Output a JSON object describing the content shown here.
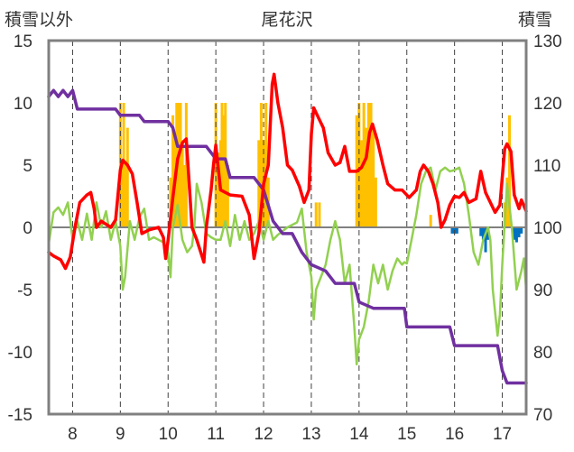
{
  "chart_data": {
    "type": "line",
    "title": "尾花沢",
    "ylabel_left": "積雪以外",
    "ylabel_right": "積雪",
    "x_ticks": [
      "8",
      "9",
      "10",
      "11",
      "12",
      "13",
      "14",
      "15",
      "16",
      "17"
    ],
    "xlim": [
      7.5,
      17.5
    ],
    "ylim_left": [
      -15,
      15
    ],
    "yticks_left": [
      15,
      10,
      5,
      0,
      -5,
      -10,
      -15
    ],
    "ylim_right": [
      70,
      130
    ],
    "yticks_right": [
      130,
      120,
      110,
      100,
      90,
      80,
      70
    ],
    "grid": "vertical dashed at each day, horizontal zero line",
    "colors": {
      "red": "#ff0000",
      "green": "#92d050",
      "purple": "#7030a0",
      "orange": "#ffc000",
      "blue": "#0070c0",
      "frame": "#808080"
    },
    "series": [
      {
        "axis": "left",
        "color": "red",
        "style": "line",
        "points": [
          [
            7.5,
            -2
          ],
          [
            7.6,
            -2.3
          ],
          [
            7.75,
            -2.6
          ],
          [
            7.85,
            -3.3
          ],
          [
            7.95,
            -2.4
          ],
          [
            8.05,
            0
          ],
          [
            8.15,
            2
          ],
          [
            8.3,
            2.6
          ],
          [
            8.38,
            2.8
          ],
          [
            8.45,
            1.5
          ],
          [
            8.5,
            0
          ],
          [
            8.6,
            0.5
          ],
          [
            8.8,
            0
          ],
          [
            8.9,
            0.6
          ],
          [
            9.0,
            4.6
          ],
          [
            9.05,
            5.4
          ],
          [
            9.15,
            5
          ],
          [
            9.25,
            4.3
          ],
          [
            9.35,
            2
          ],
          [
            9.45,
            -0.5
          ],
          [
            9.6,
            -0.2
          ],
          [
            9.8,
            0
          ],
          [
            9.9,
            -0.8
          ],
          [
            9.95,
            -2.5
          ],
          [
            10.0,
            -1
          ],
          [
            10.1,
            2.4
          ],
          [
            10.2,
            5.5
          ],
          [
            10.3,
            6.8
          ],
          [
            10.38,
            7.1
          ],
          [
            10.45,
            3
          ],
          [
            10.5,
            0
          ],
          [
            10.6,
            -1
          ],
          [
            10.7,
            -2.2
          ],
          [
            10.75,
            -2.8
          ],
          [
            10.8,
            0
          ],
          [
            10.9,
            3
          ],
          [
            10.95,
            5
          ],
          [
            11.0,
            6.6
          ],
          [
            11.1,
            3
          ],
          [
            11.3,
            2.6
          ],
          [
            11.55,
            2.5
          ],
          [
            11.7,
            1
          ],
          [
            11.8,
            -2.5
          ],
          [
            11.9,
            -0.5
          ],
          [
            12.0,
            3.5
          ],
          [
            12.1,
            5
          ],
          [
            12.18,
            11.5
          ],
          [
            12.22,
            12.3
          ],
          [
            12.3,
            10
          ],
          [
            12.4,
            8
          ],
          [
            12.5,
            5
          ],
          [
            12.6,
            4.6
          ],
          [
            12.75,
            3.3
          ],
          [
            12.85,
            2
          ],
          [
            12.95,
            3
          ],
          [
            13.0,
            7.5
          ],
          [
            13.05,
            9.6
          ],
          [
            13.15,
            8.8
          ],
          [
            13.25,
            8
          ],
          [
            13.35,
            6
          ],
          [
            13.5,
            5
          ],
          [
            13.6,
            5.2
          ],
          [
            13.7,
            6.5
          ],
          [
            13.8,
            4.5
          ],
          [
            13.95,
            4.5
          ],
          [
            14.05,
            4.8
          ],
          [
            14.15,
            5.6
          ],
          [
            14.22,
            7.6
          ],
          [
            14.28,
            8.3
          ],
          [
            14.38,
            7
          ],
          [
            14.5,
            5
          ],
          [
            14.6,
            3.5
          ],
          [
            14.75,
            3
          ],
          [
            14.9,
            3
          ],
          [
            15.05,
            2.4
          ],
          [
            15.2,
            3
          ],
          [
            15.28,
            4.5
          ],
          [
            15.35,
            5
          ],
          [
            15.45,
            4.5
          ],
          [
            15.55,
            3.5
          ],
          [
            15.65,
            2
          ],
          [
            15.72,
            0
          ],
          [
            15.8,
            0.6
          ],
          [
            15.9,
            1.8
          ],
          [
            16.0,
            2.5
          ],
          [
            16.1,
            2.4
          ],
          [
            16.2,
            2.8
          ],
          [
            16.3,
            2
          ],
          [
            16.45,
            2.3
          ],
          [
            16.55,
            4.5
          ],
          [
            16.65,
            2.8
          ],
          [
            16.75,
            2
          ],
          [
            16.85,
            1.2
          ],
          [
            16.95,
            1.8
          ],
          [
            17.0,
            4
          ],
          [
            17.05,
            6.3
          ],
          [
            17.1,
            6.7
          ],
          [
            17.18,
            6.1
          ],
          [
            17.25,
            2.6
          ],
          [
            17.35,
            1.5
          ],
          [
            17.4,
            2.2
          ],
          [
            17.5,
            1.3
          ]
        ]
      },
      {
        "axis": "left",
        "color": "green",
        "style": "line",
        "points": [
          [
            7.5,
            -1.3
          ],
          [
            7.6,
            1.2
          ],
          [
            7.7,
            1.6
          ],
          [
            7.8,
            1
          ],
          [
            7.9,
            2
          ],
          [
            8.0,
            -1
          ],
          [
            8.1,
            0.5
          ],
          [
            8.2,
            -1
          ],
          [
            8.3,
            1.1
          ],
          [
            8.4,
            -1
          ],
          [
            8.5,
            2
          ],
          [
            8.6,
            0
          ],
          [
            8.7,
            1.3
          ],
          [
            8.8,
            -1
          ],
          [
            8.9,
            0.5
          ],
          [
            9.0,
            -1.5
          ],
          [
            9.05,
            -5
          ],
          [
            9.1,
            -4
          ],
          [
            9.2,
            0.5
          ],
          [
            9.3,
            -1
          ],
          [
            9.4,
            0.8
          ],
          [
            9.5,
            1.5
          ],
          [
            9.6,
            -1
          ],
          [
            9.7,
            -0.8
          ],
          [
            9.8,
            -1
          ],
          [
            9.9,
            -1.2
          ],
          [
            10.0,
            -2
          ],
          [
            10.05,
            -4
          ],
          [
            10.1,
            0
          ],
          [
            10.2,
            1.8
          ],
          [
            10.3,
            -1
          ],
          [
            10.4,
            -2
          ],
          [
            10.5,
            -1.5
          ],
          [
            10.55,
            0
          ],
          [
            10.6,
            3.5
          ],
          [
            10.7,
            2
          ],
          [
            10.8,
            -0.5
          ],
          [
            10.9,
            -0.8
          ],
          [
            11.0,
            -1
          ],
          [
            11.1,
            -1
          ],
          [
            11.2,
            0.5
          ],
          [
            11.3,
            -1.5
          ],
          [
            11.4,
            1
          ],
          [
            11.5,
            -1
          ],
          [
            11.6,
            0.5
          ],
          [
            11.7,
            -1
          ],
          [
            11.8,
            -0.5
          ],
          [
            11.9,
            0.5
          ],
          [
            12.0,
            -1
          ],
          [
            12.1,
            0.5
          ],
          [
            12.2,
            -1
          ],
          [
            12.3,
            -0.6
          ],
          [
            12.5,
            0
          ],
          [
            12.7,
            0.4
          ],
          [
            12.8,
            1.5
          ],
          [
            12.9,
            -2
          ],
          [
            13.0,
            -4
          ],
          [
            13.05,
            -7.4
          ],
          [
            13.1,
            -5
          ],
          [
            13.2,
            -4
          ],
          [
            13.3,
            -3
          ],
          [
            13.4,
            -1
          ],
          [
            13.5,
            0.5
          ],
          [
            13.6,
            -1
          ],
          [
            13.7,
            -4.5
          ],
          [
            13.8,
            -3
          ],
          [
            13.9,
            -8
          ],
          [
            13.95,
            -11
          ],
          [
            14.0,
            -9
          ],
          [
            14.1,
            -8
          ],
          [
            14.2,
            -6
          ],
          [
            14.3,
            -3
          ],
          [
            14.4,
            -4.5
          ],
          [
            14.5,
            -3
          ],
          [
            14.6,
            -5
          ],
          [
            14.7,
            -3.5
          ],
          [
            14.8,
            -2.5
          ],
          [
            14.9,
            -3
          ],
          [
            14.95,
            -2.8
          ],
          [
            15.0,
            -2.9
          ],
          [
            15.1,
            -1
          ],
          [
            15.2,
            1
          ],
          [
            15.3,
            3.5
          ],
          [
            15.4,
            4.5
          ],
          [
            15.5,
            4.8
          ],
          [
            15.6,
            3
          ],
          [
            15.7,
            4.5
          ],
          [
            15.8,
            4.8
          ],
          [
            15.9,
            4.5
          ],
          [
            16.0,
            4.6
          ],
          [
            16.1,
            4.8
          ],
          [
            16.2,
            3.5
          ],
          [
            16.3,
            1
          ],
          [
            16.4,
            -2
          ],
          [
            16.5,
            -3
          ],
          [
            16.6,
            -1
          ],
          [
            16.7,
            0
          ],
          [
            16.75,
            -1
          ],
          [
            16.8,
            -5
          ],
          [
            16.9,
            -8.7
          ],
          [
            16.95,
            -7
          ],
          [
            17.0,
            -3
          ],
          [
            17.1,
            3.5
          ],
          [
            17.2,
            0
          ],
          [
            17.3,
            -5
          ],
          [
            17.4,
            -3.5
          ],
          [
            17.45,
            -2.5
          ],
          [
            17.5,
            -5
          ]
        ]
      },
      {
        "axis": "right",
        "color": "purple",
        "style": "line",
        "points": [
          [
            7.5,
            121
          ],
          [
            7.6,
            122
          ],
          [
            7.7,
            121
          ],
          [
            7.8,
            122
          ],
          [
            7.9,
            121
          ],
          [
            8.0,
            122
          ],
          [
            8.1,
            119
          ],
          [
            8.5,
            119
          ],
          [
            8.9,
            119
          ],
          [
            9.0,
            118
          ],
          [
            9.2,
            118
          ],
          [
            9.4,
            118
          ],
          [
            9.5,
            117
          ],
          [
            10.0,
            117
          ],
          [
            10.1,
            116
          ],
          [
            10.2,
            113
          ],
          [
            10.5,
            113
          ],
          [
            10.8,
            113
          ],
          [
            11.0,
            111
          ],
          [
            11.2,
            111
          ],
          [
            11.3,
            108
          ],
          [
            11.6,
            108
          ],
          [
            11.8,
            108
          ],
          [
            12.0,
            106
          ],
          [
            12.2,
            101
          ],
          [
            12.4,
            99
          ],
          [
            12.6,
            99
          ],
          [
            12.8,
            96
          ],
          [
            13.0,
            94
          ],
          [
            13.3,
            93
          ],
          [
            13.5,
            91
          ],
          [
            13.9,
            91
          ],
          [
            14.0,
            88
          ],
          [
            14.3,
            87
          ],
          [
            14.6,
            87
          ],
          [
            14.95,
            87
          ],
          [
            15.0,
            84
          ],
          [
            15.3,
            84
          ],
          [
            15.6,
            84
          ],
          [
            15.9,
            84
          ],
          [
            16.0,
            81
          ],
          [
            16.3,
            81
          ],
          [
            16.6,
            81
          ],
          [
            16.9,
            81
          ],
          [
            17.0,
            77
          ],
          [
            17.1,
            75
          ],
          [
            17.3,
            75
          ],
          [
            17.5,
            75
          ]
        ]
      },
      {
        "axis": "left",
        "color": "orange",
        "style": "bar",
        "bars": [
          [
            9.0,
            10
          ],
          [
            9.03,
            5
          ],
          [
            9.07,
            10
          ],
          [
            9.1,
            5
          ],
          [
            9.15,
            8
          ],
          [
            10.05,
            4
          ],
          [
            10.1,
            9
          ],
          [
            10.15,
            7
          ],
          [
            10.18,
            10
          ],
          [
            10.22,
            10
          ],
          [
            10.26,
            10
          ],
          [
            10.3,
            7
          ],
          [
            10.34,
            5
          ],
          [
            10.38,
            10
          ],
          [
            11.0,
            10
          ],
          [
            11.03,
            4
          ],
          [
            11.06,
            6
          ],
          [
            11.1,
            7
          ],
          [
            11.13,
            10
          ],
          [
            11.17,
            9
          ],
          [
            11.2,
            10
          ],
          [
            11.25,
            5
          ],
          [
            11.9,
            7
          ],
          [
            11.95,
            10
          ],
          [
            12.0,
            7
          ],
          [
            12.05,
            10
          ],
          [
            12.1,
            4
          ],
          [
            13.1,
            2
          ],
          [
            13.17,
            2
          ],
          [
            13.95,
            9
          ],
          [
            14.0,
            10
          ],
          [
            14.05,
            7
          ],
          [
            14.1,
            10
          ],
          [
            14.15,
            8
          ],
          [
            14.2,
            10
          ],
          [
            14.25,
            10
          ],
          [
            14.3,
            8
          ],
          [
            14.35,
            4
          ],
          [
            15.5,
            1
          ],
          [
            17.05,
            2
          ],
          [
            17.1,
            4
          ],
          [
            17.15,
            9
          ]
        ]
      },
      {
        "axis": "left",
        "color": "blue",
        "style": "bar",
        "bars": [
          [
            15.95,
            -0.5
          ],
          [
            16.0,
            -0.5
          ],
          [
            16.05,
            -0.5
          ],
          [
            16.55,
            -0.7
          ],
          [
            16.6,
            -1
          ],
          [
            16.65,
            -2
          ],
          [
            16.7,
            -1
          ],
          [
            17.25,
            -1
          ],
          [
            17.3,
            -1.2
          ],
          [
            17.35,
            -0.8
          ],
          [
            17.4,
            -0.5
          ]
        ]
      }
    ]
  }
}
